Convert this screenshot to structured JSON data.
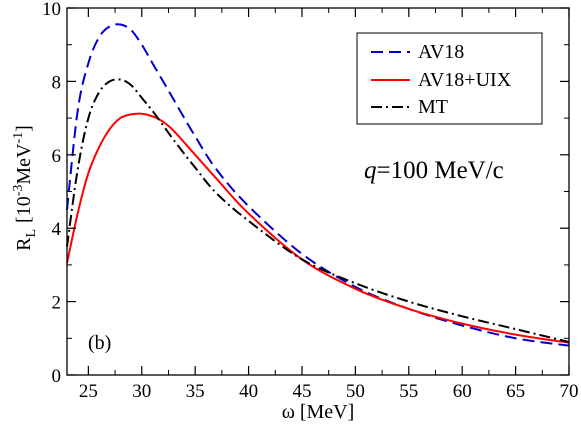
{
  "chart_data": {
    "type": "line",
    "xlabel_symbol": "ω",
    "xlabel_unit": "[MeV]",
    "ylabel_main": "R",
    "ylabel_sub": "L",
    "ylabel_unit_open": "[10",
    "ylabel_exp1": "-3",
    "ylabel_unit_mid": "MeV",
    "ylabel_exp2": "-1",
    "ylabel_unit_close": "]",
    "xlim": [
      23,
      70
    ],
    "ylim": [
      0,
      10
    ],
    "xticks": [
      25,
      30,
      35,
      40,
      45,
      50,
      55,
      60,
      65,
      70
    ],
    "yticks": [
      0,
      2,
      4,
      6,
      8,
      10
    ],
    "legend_position": "top-right",
    "annotation_q_symbol": "q",
    "annotation_q_value": "=100 MeV/c",
    "annotation_panel": "(b)",
    "series": [
      {
        "name": "AV18",
        "color": "#0000cc",
        "dash": "dashed",
        "x": [
          23,
          24,
          25,
          26,
          27,
          28,
          29,
          30,
          31,
          32,
          33,
          35,
          37,
          40,
          45,
          50,
          55,
          60,
          65,
          70
        ],
        "y": [
          4.5,
          7.2,
          8.5,
          9.2,
          9.5,
          9.55,
          9.4,
          9.0,
          8.5,
          8.0,
          7.5,
          6.5,
          5.6,
          4.6,
          3.3,
          2.4,
          1.8,
          1.35,
          1.0,
          0.8
        ]
      },
      {
        "name": "AV18+UIX",
        "color": "#ff0000",
        "dash": "solid",
        "x": [
          23,
          24,
          25,
          26,
          27,
          28,
          29,
          30,
          31,
          32,
          33,
          35,
          37,
          40,
          45,
          50,
          55,
          60,
          65,
          70
        ],
        "y": [
          3.05,
          4.4,
          5.5,
          6.2,
          6.7,
          7.0,
          7.1,
          7.12,
          7.05,
          6.9,
          6.65,
          6.0,
          5.35,
          4.4,
          3.15,
          2.35,
          1.8,
          1.4,
          1.1,
          0.88
        ]
      },
      {
        "name": "MT",
        "color": "#000000",
        "dash": "dashdot",
        "x": [
          23,
          24,
          25,
          26,
          27,
          28,
          29,
          30,
          31,
          32,
          33,
          35,
          37,
          40,
          45,
          50,
          55,
          60,
          65,
          70
        ],
        "y": [
          3.5,
          5.6,
          7.0,
          7.7,
          8.0,
          8.05,
          7.9,
          7.55,
          7.2,
          6.8,
          6.4,
          5.65,
          4.95,
          4.2,
          3.15,
          2.5,
          2.0,
          1.6,
          1.25,
          0.9
        ]
      }
    ]
  }
}
